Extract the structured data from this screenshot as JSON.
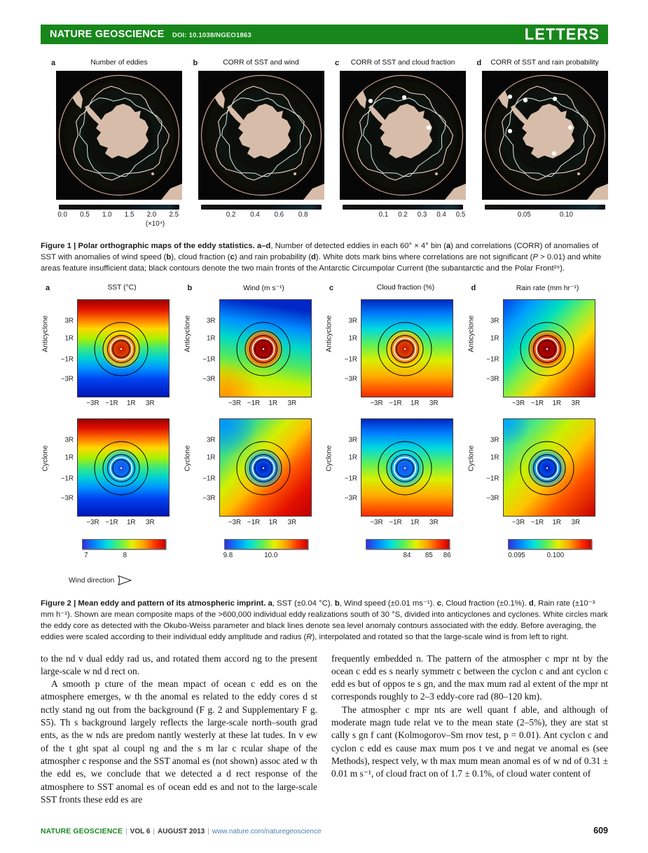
{
  "header": {
    "journal": "NATURE GEOSCIENCE",
    "doi": "DOI: 10.1038/NGEO1863",
    "article_type": "LETTERS"
  },
  "figure1": {
    "panels": [
      {
        "letter": "a",
        "title": "Number of eddies",
        "colorbar_ticks": [
          "0.0",
          "0.5",
          "1.0",
          "1.5",
          "2.0",
          "2.5"
        ],
        "scale_note": "(×10⁴)",
        "white_dots": 0
      },
      {
        "letter": "b",
        "title": "CORR of SST and wind",
        "colorbar_ticks": [
          "0.2",
          "0.4",
          "0.6",
          "0.8"
        ],
        "scale_note": "",
        "white_dots": 0
      },
      {
        "letter": "c",
        "title": "CORR of SST and cloud fraction",
        "colorbar_ticks": [
          "0.1",
          "0.2",
          "0.3",
          "0.4",
          "0.5"
        ],
        "scale_note": "",
        "white_dots": 3
      },
      {
        "letter": "d",
        "title": "CORR of SST and rain probability",
        "colorbar_ticks": [
          "0.05",
          "0.10"
        ],
        "scale_note": "",
        "white_dots": 6
      }
    ],
    "caption_segments": [
      {
        "t": "Figure 1 | Polar orthographic maps of the eddy statistics. a–d",
        "b": true
      },
      {
        "t": ", Number of detected eddies in each 60° × 4° bin ("
      },
      {
        "t": "a",
        "b": true
      },
      {
        "t": ") and correlations (CORR) of anomalies of SST with anomalies of wind speed ("
      },
      {
        "t": "b",
        "b": true
      },
      {
        "t": "), cloud fraction ("
      },
      {
        "t": "c",
        "b": true
      },
      {
        "t": ") and rain probability ("
      },
      {
        "t": "d",
        "b": true
      },
      {
        "t": "). White dots mark bins where correlations are not significant ("
      },
      {
        "t": "P",
        "i": true
      },
      {
        "t": " > 0.01) and white areas feature insufficient data; black contours denote the two main fronts of the Antarctic Circumpolar Current (the subantarctic and the Polar Front²⁹)."
      }
    ]
  },
  "figure2": {
    "columns": [
      {
        "letter": "a",
        "title": "SST (°C)",
        "colorbar_ticks": [
          "7",
          "8"
        ]
      },
      {
        "letter": "b",
        "title": "Wind (m s⁻¹)",
        "colorbar_ticks": [
          "9.8",
          "10.0"
        ]
      },
      {
        "letter": "c",
        "title": "Cloud fraction (%)",
        "colorbar_ticks": [
          "84",
          "85",
          "86"
        ]
      },
      {
        "letter": "d",
        "title": "Rain rate (mm hr⁻¹)",
        "colorbar_ticks": [
          "0.095",
          "0.100"
        ]
      }
    ],
    "rows": [
      {
        "label": "Anticyclone"
      },
      {
        "label": "Cyclone"
      }
    ],
    "y_ticks": [
      "3R",
      "1R",
      "−1R",
      "−3R"
    ],
    "x_ticks": [
      "−3R",
      "−1R",
      "1R",
      "3R"
    ],
    "wind_direction_label": "Wind direction",
    "caption_segments": [
      {
        "t": "Figure 2 | Mean eddy and pattern of its atmospheric imprint. a",
        "b": true
      },
      {
        "t": ", SST (±0.04 °C). "
      },
      {
        "t": "b",
        "b": true
      },
      {
        "t": ", Wind speed (±0.01 ms⁻¹). "
      },
      {
        "t": "c",
        "b": true
      },
      {
        "t": ", Cloud fraction (±0.1%). "
      },
      {
        "t": "d",
        "b": true
      },
      {
        "t": ", Rain rate (±10⁻³ mm h⁻¹). Shown are mean composite maps of the >600,000 individual eddy realizations south of 30 °S, divided into anticyclones and cyclones. White circles mark the eddy core as detected with the Okubo-Weiss parameter and black lines denote sea level anomaly contours associated with the eddy. Before averaging, the eddies were scaled according to their individual eddy amplitude and radius ("
      },
      {
        "t": "R",
        "i": true
      },
      {
        "t": "), interpolated and rotated so that the large-scale wind is from left to right."
      }
    ]
  },
  "body": {
    "left": [
      {
        "indent": false,
        "text": "to the nd v dual eddy rad us, and rotated them accord ng to the present large-scale w nd d rect on."
      },
      {
        "indent": true,
        "text": "A smooth p cture of the mean mpact of ocean c edd es on the atmosphere emerges, w th the anomal es related to the eddy cores d st nctly stand ng out from the background (F g. 2 and Supplementary F g. S5). Th s background largely reflects the large-scale north–south grad ents, as the w nds are predom nantly westerly at these lat tudes. In v ew of the t ght spat al coupl ng and the s m lar c rcular shape of the atmospher c response and the SST anomal es (not shown) assoc ated w th the edd es, we conclude that we detected a d rect response of the atmosphere to SST anomal es of ocean edd es and not to the large-scale SST fronts these edd es are"
      }
    ],
    "right": [
      {
        "indent": false,
        "text": "frequently embedded n. The pattern of the atmospher c mpr nt by the ocean c edd es s nearly symmetr c between the cyclon c and ant cyclon c edd es but of oppos te s gn, and the max mum rad al extent of the mpr nt corresponds roughly to 2–3 eddy-core rad (80–120 km)."
      },
      {
        "indent": true,
        "text": "The atmospher c mpr nts are well quant f able, and although of moderate magn tude relat ve to the mean state (2–5%), they are stat st cally s gn f cant (Kolmogorov–Sm rnov test, p = 0.01). Ant cyclon c and cyclon c edd es cause max mum pos t ve and negat ve anomal es (see Methods), respect vely, w th max mum mean anomal es of w nd of 0.31 ± 0.01 m s⁻¹, of cloud fract on of 1.7 ± 0.1%, of cloud water content of"
      }
    ]
  },
  "footer": {
    "journal": "NATURE GEOSCIENCE",
    "separator": "|",
    "volume": "VOL 6",
    "issue_date": "AUGUST 2013",
    "url": "www.nature.com/naturegeoscience",
    "page_number": "609"
  },
  "colors": {
    "brand_green": "#17871b",
    "link_blue": "#4d7fb5",
    "land_beige": "#d7bda9",
    "map_background": "#060606"
  }
}
